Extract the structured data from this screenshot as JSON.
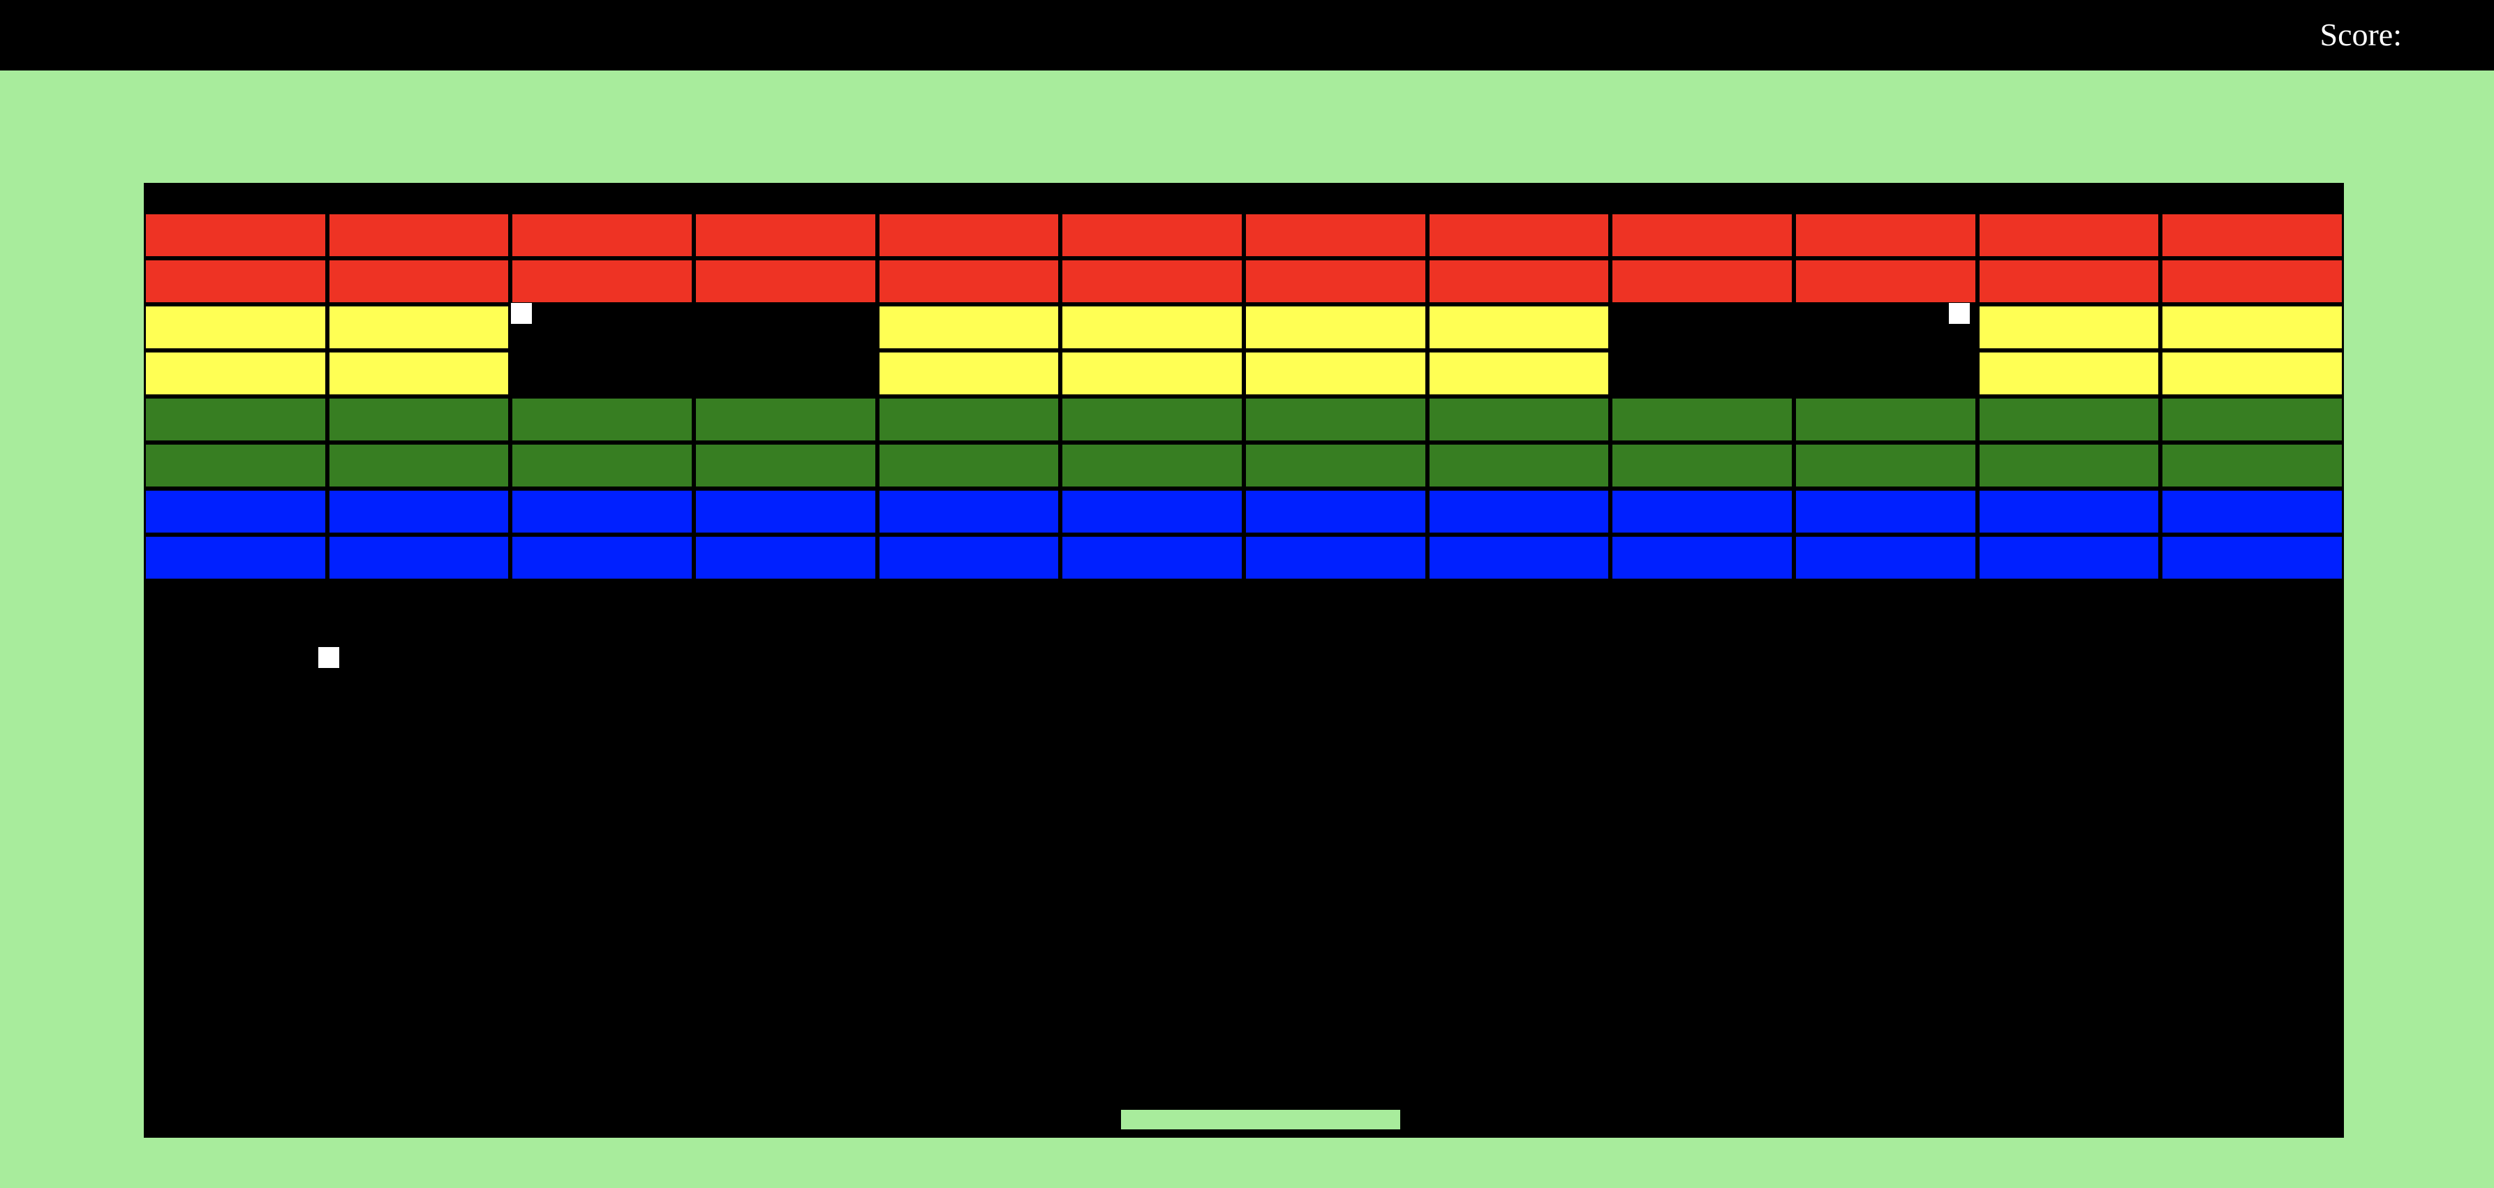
{
  "header": {
    "score_label": "Score:",
    "score_value": ""
  },
  "colors": {
    "background": "#a8ec9c",
    "board": "#000000",
    "header": "#000000",
    "ball": "#ffffff",
    "paddle": "#a8ec9c"
  },
  "bricks": {
    "columns": 12,
    "rows": [
      {
        "color_name": "red",
        "color": "#ee3324",
        "present": [
          1,
          1,
          1,
          1,
          1,
          1,
          1,
          1,
          1,
          1,
          1,
          1
        ]
      },
      {
        "color_name": "red",
        "color": "#ee3324",
        "present": [
          1,
          1,
          1,
          1,
          1,
          1,
          1,
          1,
          1,
          1,
          1,
          1
        ]
      },
      {
        "color_name": "yellow",
        "color": "#ffff54",
        "present": [
          1,
          1,
          0,
          0,
          1,
          1,
          1,
          1,
          0,
          0,
          1,
          1
        ]
      },
      {
        "color_name": "yellow",
        "color": "#ffff54",
        "present": [
          1,
          1,
          0,
          0,
          1,
          1,
          1,
          1,
          0,
          0,
          1,
          1
        ]
      },
      {
        "color_name": "green",
        "color": "#377e22",
        "present": [
          1,
          1,
          1,
          1,
          1,
          1,
          1,
          1,
          1,
          1,
          1,
          1
        ]
      },
      {
        "color_name": "green",
        "color": "#377e22",
        "present": [
          1,
          1,
          1,
          1,
          1,
          1,
          1,
          1,
          1,
          1,
          1,
          1
        ]
      },
      {
        "color_name": "blue",
        "color": "#0020ff",
        "present": [
          1,
          1,
          1,
          1,
          1,
          1,
          1,
          1,
          1,
          1,
          1,
          1
        ]
      },
      {
        "color_name": "blue",
        "color": "#0020ff",
        "present": [
          1,
          1,
          1,
          1,
          1,
          1,
          1,
          1,
          1,
          1,
          1,
          1
        ]
      }
    ]
  },
  "balls_count": 3
}
